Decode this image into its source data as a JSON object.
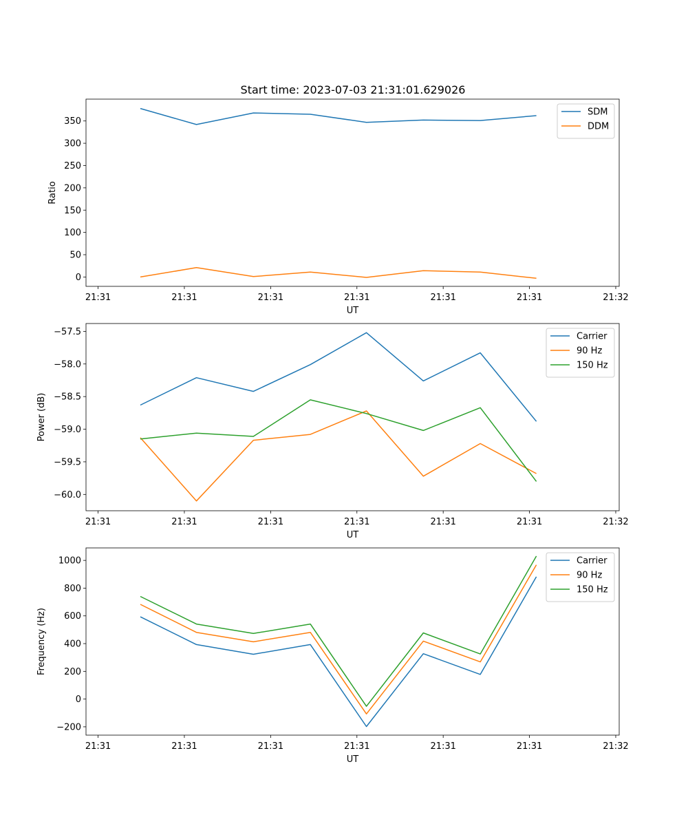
{
  "figure": {
    "title": "Start time: 2023-07-03 21:31:01.629026"
  },
  "colors": {
    "blue": "#1f77b4",
    "orange": "#ff7f0e",
    "green": "#2ca02c"
  },
  "chart_data": [
    {
      "type": "line",
      "title": "Start time: 2023-07-03 21:31:01.629026",
      "xlabel": "UT",
      "ylabel": "Ratio",
      "xlim": [
        -0.14,
        6.04
      ],
      "ylim": [
        -21,
        399
      ],
      "xticks": [
        0,
        1,
        2,
        3,
        4,
        5,
        6
      ],
      "xtick_labels": [
        "21:31",
        "21:31",
        "21:31",
        "21:31",
        "21:31",
        "21:31",
        "21:32"
      ],
      "yticks": [
        0,
        50,
        100,
        150,
        200,
        250,
        300,
        350
      ],
      "ytick_labels": [
        "0",
        "50",
        "100",
        "150",
        "200",
        "250",
        "300",
        "350"
      ],
      "x": [
        0.49,
        1.14,
        1.8,
        2.46,
        3.11,
        3.77,
        4.43,
        5.08
      ],
      "series": [
        {
          "name": "SDM",
          "color": "#1f77b4",
          "values": [
            378,
            342,
            368,
            365,
            347,
            352,
            351,
            362
          ]
        },
        {
          "name": "DDM",
          "color": "#ff7f0e",
          "values": [
            0,
            21,
            1,
            11,
            -1,
            14,
            11,
            -3
          ]
        }
      ],
      "legend": "top-right",
      "grid": false
    },
    {
      "type": "line",
      "title": "",
      "xlabel": "UT",
      "ylabel": "Power (dB)",
      "xlim": [
        -0.14,
        6.04
      ],
      "ylim": [
        -60.25,
        -57.38
      ],
      "xticks": [
        0,
        1,
        2,
        3,
        4,
        5,
        6
      ],
      "xtick_labels": [
        "21:31",
        "21:31",
        "21:31",
        "21:31",
        "21:31",
        "21:31",
        "21:32"
      ],
      "yticks": [
        -60.0,
        -59.5,
        -59.0,
        -58.5,
        -58.0,
        -57.5
      ],
      "ytick_labels": [
        "−60.0",
        "−59.5",
        "−59.0",
        "−58.5",
        "−58.0",
        "−57.5"
      ],
      "x": [
        0.49,
        1.14,
        1.8,
        2.46,
        3.11,
        3.77,
        4.43,
        5.08
      ],
      "series": [
        {
          "name": "Carrier",
          "color": "#1f77b4",
          "values": [
            -58.63,
            -58.21,
            -58.42,
            -58.01,
            -57.52,
            -58.26,
            -57.83,
            -58.88
          ]
        },
        {
          "name": "90 Hz",
          "color": "#ff7f0e",
          "values": [
            -59.13,
            -60.1,
            -59.17,
            -59.08,
            -58.72,
            -59.72,
            -59.22,
            -59.68
          ]
        },
        {
          "name": "150 Hz",
          "color": "#2ca02c",
          "values": [
            -59.15,
            -59.06,
            -59.11,
            -58.55,
            -58.76,
            -59.02,
            -58.67,
            -59.8
          ]
        }
      ],
      "legend": "top-right",
      "grid": false
    },
    {
      "type": "line",
      "title": "",
      "xlabel": "UT",
      "ylabel": "Frequency (Hz)",
      "xlim": [
        -0.14,
        6.04
      ],
      "ylim": [
        -260,
        1090
      ],
      "xticks": [
        0,
        1,
        2,
        3,
        4,
        5,
        6
      ],
      "xtick_labels": [
        "21:31",
        "21:31",
        "21:31",
        "21:31",
        "21:31",
        "21:31",
        "21:32"
      ],
      "yticks": [
        -200,
        0,
        200,
        400,
        600,
        800,
        1000
      ],
      "ytick_labels": [
        "−200",
        "0",
        "200",
        "400",
        "600",
        "800",
        "1000"
      ],
      "x": [
        0.49,
        1.14,
        1.8,
        2.46,
        3.11,
        3.77,
        4.43,
        5.08
      ],
      "series": [
        {
          "name": "Carrier",
          "color": "#1f77b4",
          "values": [
            593,
            393,
            323,
            393,
            -198,
            327,
            178,
            882
          ]
        },
        {
          "name": "90 Hz",
          "color": "#ff7f0e",
          "values": [
            683,
            481,
            413,
            481,
            -107,
            418,
            268,
            968
          ]
        },
        {
          "name": "150 Hz",
          "color": "#2ca02c",
          "values": [
            740,
            541,
            473,
            541,
            -52,
            477,
            325,
            1031
          ]
        }
      ],
      "legend": "top-right",
      "grid": false
    }
  ]
}
